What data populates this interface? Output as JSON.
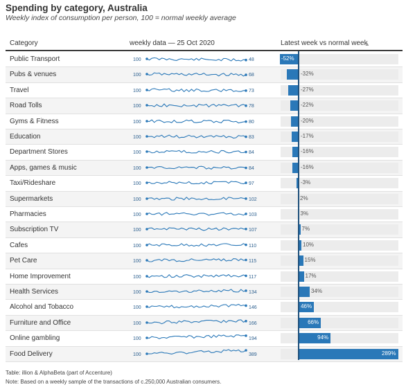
{
  "title": "Spending by category, Australia",
  "subtitle": "Weekly index of consumption per person, 100 = normal weekly average",
  "columns": {
    "category": "Category",
    "sparkline": "weekly data — 25 Oct 2020",
    "bar": "Latest week vs normal week",
    "sort_icon": "triangle-up-icon"
  },
  "footer": {
    "source": "Table: illion & AlphaBeta (part of Accenture)",
    "note": "Note: Based on a weekly sample of the transactions of c.250,000 Australian consumers."
  },
  "colors": {
    "accent": "#2a78b8",
    "track": "#ececec",
    "zero_line": "#1e4f7a",
    "spark": "#2a78b8"
  },
  "chart_data": {
    "type": "table",
    "spark_start": 100,
    "bar_xlim": [
      -60,
      289
    ],
    "rows": [
      {
        "category": "Public Transport",
        "latest_index": 48,
        "change_pct": -52,
        "change_label": "-52%"
      },
      {
        "category": "Pubs & venues",
        "latest_index": 68,
        "change_pct": -32,
        "change_label": "-32%"
      },
      {
        "category": "Travel",
        "latest_index": 73,
        "change_pct": -27,
        "change_label": "-27%"
      },
      {
        "category": "Road Tolls",
        "latest_index": 78,
        "change_pct": -22,
        "change_label": "-22%"
      },
      {
        "category": "Gyms & Fitness",
        "latest_index": 80,
        "change_pct": -20,
        "change_label": "-20%"
      },
      {
        "category": "Education",
        "latest_index": 83,
        "change_pct": -17,
        "change_label": "-17%"
      },
      {
        "category": "Department Stores",
        "latest_index": 84,
        "change_pct": -16,
        "change_label": "-16%"
      },
      {
        "category": "Apps, games & music",
        "latest_index": 84,
        "change_pct": -16,
        "change_label": "-16%"
      },
      {
        "category": "Taxi/Rideshare",
        "latest_index": 97,
        "change_pct": -3,
        "change_label": "-3%"
      },
      {
        "category": "Supermarkets",
        "latest_index": 102,
        "change_pct": 2,
        "change_label": "2%"
      },
      {
        "category": "Pharmacies",
        "latest_index": 103,
        "change_pct": 3,
        "change_label": "3%"
      },
      {
        "category": "Subscription TV",
        "latest_index": 107,
        "change_pct": 7,
        "change_label": "7%"
      },
      {
        "category": "Cafes",
        "latest_index": 110,
        "change_pct": 10,
        "change_label": "10%"
      },
      {
        "category": "Pet Care",
        "latest_index": 115,
        "change_pct": 15,
        "change_label": "15%"
      },
      {
        "category": "Home Improvement",
        "latest_index": 117,
        "change_pct": 17,
        "change_label": "17%"
      },
      {
        "category": "Health Services",
        "latest_index": 134,
        "change_pct": 34,
        "change_label": "34%"
      },
      {
        "category": "Alcohol and Tobacco",
        "latest_index": 146,
        "change_pct": 46,
        "change_label": "46%"
      },
      {
        "category": "Furniture and Office",
        "latest_index": 166,
        "change_pct": 66,
        "change_label": "66%"
      },
      {
        "category": "Online gambling",
        "latest_index": 194,
        "change_pct": 94,
        "change_label": "94%"
      },
      {
        "category": "Food Delivery",
        "latest_index": 389,
        "change_pct": 289,
        "change_label": "289%"
      }
    ]
  }
}
